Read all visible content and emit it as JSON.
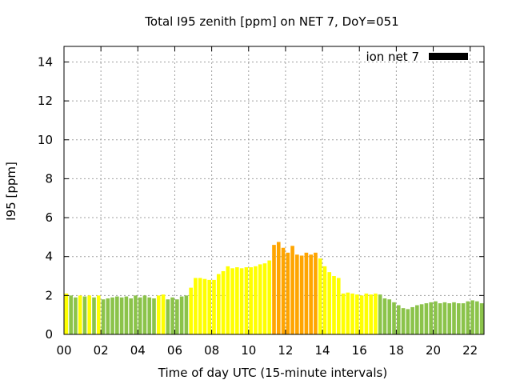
{
  "chart_data": {
    "type": "bar",
    "title": "Total I95 zenith [ppm] on NET 7, DoY=051",
    "xlabel": "Time of day UTC (15-minute intervals)",
    "ylabel": "I95 [ppm]",
    "xlim": [
      0,
      22.75
    ],
    "ylim": [
      0,
      14.8
    ],
    "xticks": [
      0,
      2,
      4,
      6,
      8,
      10,
      12,
      14,
      16,
      18,
      20,
      22
    ],
    "xtick_labels": [
      "00",
      "02",
      "04",
      "06",
      "08",
      "10",
      "12",
      "14",
      "16",
      "18",
      "20",
      "22"
    ],
    "yticks": [
      0,
      2,
      4,
      6,
      8,
      10,
      12,
      14
    ],
    "ytick_labels": [
      "0",
      "2",
      "4",
      "6",
      "8",
      "10",
      "12",
      "14"
    ],
    "grid": true,
    "legend": {
      "position": "top-right",
      "label": "ion net 7",
      "color": "#000000"
    },
    "bar_width_hours": 0.2,
    "colors": {
      "green": "#8bc34a",
      "yellow": "#ffff00",
      "orange": "#ffa500"
    },
    "series": [
      {
        "x": [
          0.125,
          0.375,
          0.625,
          0.875,
          1.125,
          1.375,
          1.625,
          1.875,
          2.125,
          2.375,
          2.625,
          2.875,
          3.125,
          3.375,
          3.625,
          3.875,
          4.125,
          4.375,
          4.625,
          4.875,
          5.125,
          5.375,
          5.625,
          5.875,
          6.125,
          6.375,
          6.625,
          6.875,
          7.125,
          7.375,
          7.625,
          7.875,
          8.125,
          8.375,
          8.625,
          8.875,
          9.125,
          9.375,
          9.625,
          9.875,
          10.125,
          10.375,
          10.625,
          10.875,
          11.125,
          11.375,
          11.625,
          11.875,
          12.125,
          12.375,
          12.625,
          12.875,
          13.125,
          13.375,
          13.625,
          13.875,
          14.125,
          14.375,
          14.625,
          14.875,
          15.125,
          15.375,
          15.625,
          15.875,
          16.125,
          16.375,
          16.625,
          16.875,
          17.125,
          17.375,
          17.625,
          17.875,
          18.125,
          18.375,
          18.625,
          18.875,
          19.125,
          19.375,
          19.625,
          19.875,
          20.125,
          20.375,
          20.625,
          20.875,
          21.125,
          21.375,
          21.625,
          21.875,
          22.125,
          22.375,
          22.625
        ],
        "values": [
          2.1,
          2.0,
          1.9,
          2.0,
          1.95,
          2.0,
          1.9,
          2.0,
          1.8,
          1.85,
          1.9,
          1.95,
          1.9,
          1.95,
          1.85,
          2.0,
          1.9,
          2.0,
          1.9,
          1.85,
          2.0,
          2.05,
          1.8,
          1.9,
          1.8,
          1.95,
          2.0,
          2.4,
          2.9,
          2.9,
          2.85,
          2.8,
          2.8,
          3.1,
          3.25,
          3.5,
          3.4,
          3.45,
          3.4,
          3.45,
          3.45,
          3.5,
          3.6,
          3.65,
          3.8,
          4.6,
          4.75,
          4.45,
          4.2,
          4.55,
          4.1,
          4.05,
          4.2,
          4.1,
          4.2,
          3.9,
          3.5,
          3.2,
          3.0,
          2.9,
          2.1,
          2.15,
          2.1,
          2.05,
          2.0,
          2.1,
          2.05,
          2.1,
          2.05,
          1.85,
          1.8,
          1.65,
          1.5,
          1.35,
          1.3,
          1.4,
          1.5,
          1.55,
          1.6,
          1.65,
          1.7,
          1.6,
          1.65,
          1.6,
          1.65,
          1.6,
          1.6,
          1.7,
          1.75,
          1.7,
          1.6
        ],
        "colors": [
          "yellow",
          "green",
          "green",
          "yellow",
          "green",
          "yellow",
          "green",
          "yellow",
          "green",
          "green",
          "green",
          "green",
          "green",
          "green",
          "green",
          "green",
          "green",
          "green",
          "green",
          "green",
          "yellow",
          "yellow",
          "green",
          "green",
          "green",
          "green",
          "green",
          "yellow",
          "yellow",
          "yellow",
          "yellow",
          "yellow",
          "yellow",
          "yellow",
          "yellow",
          "yellow",
          "yellow",
          "yellow",
          "yellow",
          "yellow",
          "yellow",
          "yellow",
          "yellow",
          "yellow",
          "yellow",
          "orange",
          "orange",
          "orange",
          "orange",
          "orange",
          "orange",
          "orange",
          "orange",
          "orange",
          "orange",
          "yellow",
          "yellow",
          "yellow",
          "yellow",
          "yellow",
          "yellow",
          "yellow",
          "yellow",
          "yellow",
          "yellow",
          "yellow",
          "yellow",
          "yellow",
          "green",
          "green",
          "green",
          "green",
          "green",
          "green",
          "green",
          "green",
          "green",
          "green",
          "green",
          "green",
          "green",
          "green",
          "green",
          "green",
          "green",
          "green",
          "green",
          "green",
          "green",
          "green",
          "green"
        ]
      }
    ]
  }
}
